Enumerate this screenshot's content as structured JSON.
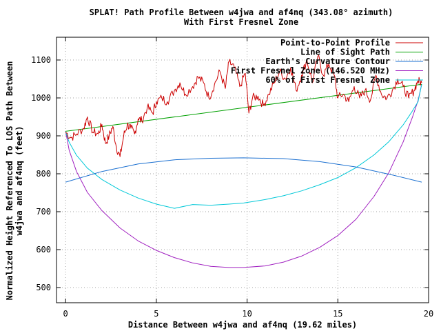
{
  "chart_data": {
    "type": "line",
    "title": "SPLAT! Path Profile Between w4jwa and af4nq (343.08° azimuth)",
    "subtitle": "With First Fresnel Zone",
    "xlabel": "Distance Between w4jwa and af4nq (19.62 miles)",
    "ylabel": "Normalized Height Referenced To LOS Path Between",
    "ylabel2": "w4jwa and af4nq (feet)",
    "xlim": [
      -0.5,
      20
    ],
    "ylim": [
      460,
      1160
    ],
    "xticks": [
      0,
      5,
      10,
      15,
      20
    ],
    "yticks": [
      500,
      600,
      700,
      800,
      900,
      1000,
      1100
    ],
    "grid": true,
    "legend_position": "top-right",
    "colors": {
      "profile": "#cc0000",
      "los": "#00a000",
      "curvature": "#1a6fd0",
      "fresnel": "#a020c0",
      "fresnel60": "#00c8d8"
    },
    "series": [
      {
        "name": "Point-to-Point Profile",
        "key": "profile",
        "x": [
          0,
          0.3,
          0.6,
          1.0,
          1.2,
          1.5,
          1.8,
          2.0,
          2.2,
          2.4,
          2.6,
          2.8,
          3.0,
          3.2,
          3.4,
          3.6,
          3.8,
          4.0,
          4.2,
          4.5,
          4.8,
          5.0,
          5.3,
          5.6,
          6.0,
          6.3,
          6.6,
          7.0,
          7.3,
          7.6,
          7.9,
          8.2,
          8.5,
          8.8,
          9.0,
          9.3,
          9.6,
          9.9,
          10.1,
          10.3,
          10.6,
          10.9,
          11.2,
          11.5,
          11.8,
          12.1,
          12.4,
          12.7,
          13.0,
          13.3,
          13.6,
          13.9,
          14.2,
          14.5,
          14.8,
          15.0,
          15.3,
          15.6,
          15.9,
          16.2,
          16.5,
          16.8,
          17.1,
          17.4,
          17.7,
          18.0,
          18.3,
          18.6,
          18.9,
          19.2,
          19.4,
          19.62
        ],
        "y": [
          910,
          895,
          905,
          920,
          950,
          910,
          905,
          930,
          880,
          900,
          925,
          870,
          845,
          900,
          930,
          920,
          905,
          945,
          940,
          975,
          960,
          990,
          1000,
          990,
          1020,
          1040,
          1010,
          1030,
          1055,
          1040,
          1000,
          1035,
          1070,
          1025,
          1095,
          1080,
          1030,
          1065,
          960,
          1000,
          1005,
          980,
          1010,
          1040,
          1070,
          1050,
          1080,
          1020,
          1060,
          1100,
          1040,
          1110,
          1060,
          1090,
          1060,
          1000,
          1010,
          990,
          1030,
          1000,
          1020,
          995,
          1060,
          1010,
          1000,
          1020,
          1050,
          1030,
          1000,
          1020,
          1045,
          1040
        ]
      },
      {
        "name": "Line of Sight Path",
        "key": "los",
        "x": [
          0,
          19.62
        ],
        "y": [
          912,
          1036
        ]
      },
      {
        "name": "Earth's Curvature Contour",
        "key": "curvature",
        "x": [
          0,
          2,
          4,
          6,
          8,
          9.81,
          12,
          14,
          16,
          18,
          19.62
        ],
        "y": [
          778,
          806,
          826,
          837,
          841,
          842,
          840,
          832,
          818,
          797,
          778
        ]
      },
      {
        "name": "First Fresnel Zone (146.520 MHz)",
        "key": "fresnel",
        "x": [
          0,
          0.2,
          0.6,
          1.2,
          2,
          3,
          4,
          5,
          6,
          7,
          8,
          9,
          9.81,
          11,
          12,
          13,
          14,
          15,
          16,
          17,
          17.8,
          18.6,
          19.1,
          19.42,
          19.62
        ],
        "y": [
          912,
          862,
          806,
          751,
          703,
          657,
          623,
          598,
          579,
          565,
          556,
          553,
          553,
          557,
          567,
          583,
          606,
          637,
          680,
          741,
          802,
          884,
          948,
          993,
          1036
        ]
      },
      {
        "name": "60% of First Fresnel Zone",
        "key": "fresnel60",
        "x": [
          0,
          0.2,
          0.6,
          1.2,
          2,
          3,
          4,
          5,
          6,
          7,
          8,
          9,
          9.81,
          11,
          12,
          13,
          14,
          15,
          16,
          17,
          17.8,
          18.6,
          19.1,
          19.42,
          19.62
        ],
        "y": [
          912,
          883,
          849,
          815,
          785,
          757,
          736,
          720,
          709,
          719,
          717,
          720,
          723,
          732,
          742,
          755,
          771,
          790,
          816,
          850,
          884,
          929,
          965,
          990,
          1036
        ]
      }
    ]
  }
}
